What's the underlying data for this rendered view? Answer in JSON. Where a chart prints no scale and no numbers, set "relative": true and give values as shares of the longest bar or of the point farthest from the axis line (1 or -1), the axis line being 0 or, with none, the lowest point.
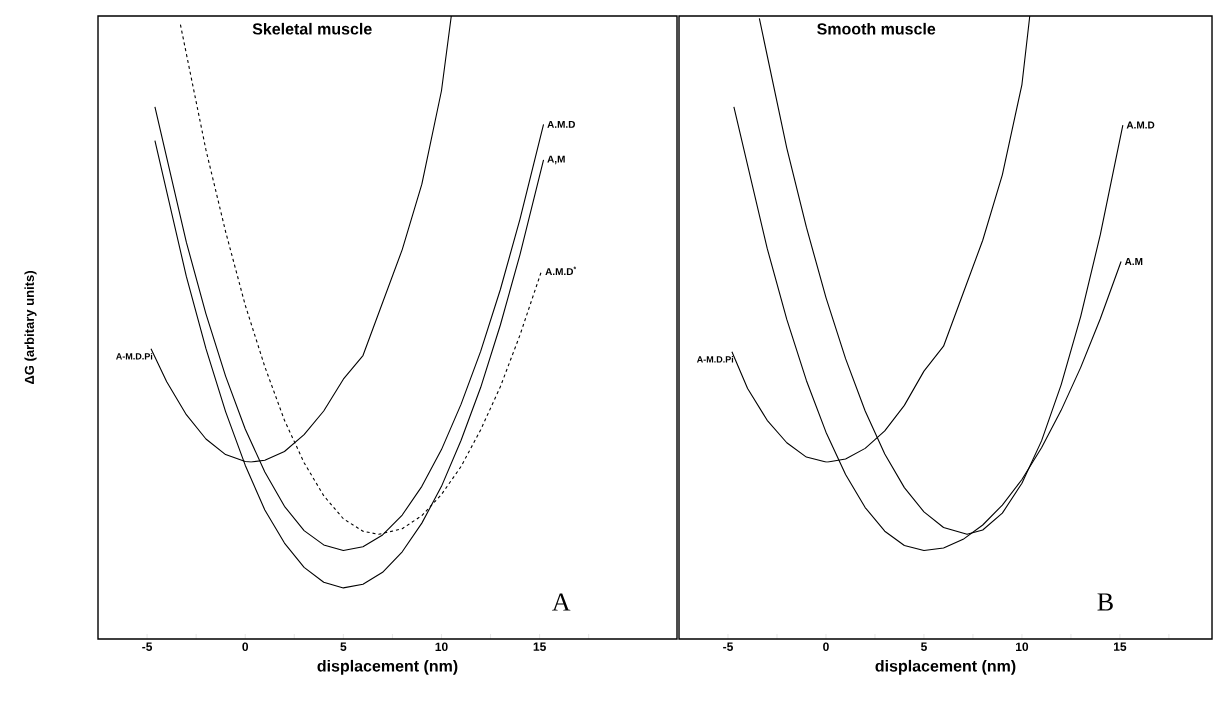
{
  "chart_data": [
    {
      "type": "line",
      "title": "Skeletal muscle",
      "xlabel": "displacement (nm)",
      "ylabel": "ΔG (arbitary units)",
      "relative": true,
      "xlim": [
        -7.5,
        22
      ],
      "xticks": [
        -5,
        {
          "value": -2.5,
          "label": null
        },
        0,
        {
          "value": 2.5,
          "label": null
        },
        5,
        {
          "value": 7.5,
          "label": null
        },
        10,
        {
          "value": 12.5,
          "label": null
        },
        15,
        {
          "value": 17.5,
          "label": null
        }
      ],
      "annotations": [
        "A"
      ],
      "series": [
        {
          "name": "A-M.D.Pi",
          "color": "#000000",
          "x": [
            -4.8,
            -4,
            -3,
            -2,
            -1,
            0,
            0.3,
            1,
            2,
            3,
            4,
            5,
            6,
            7,
            8,
            9,
            10,
            10.5
          ],
          "values": [
            0.466,
            0.413,
            0.36,
            0.321,
            0.296,
            0.285,
            0.284,
            0.287,
            0.301,
            0.328,
            0.366,
            0.417,
            0.455,
            0.54,
            0.625,
            0.73,
            0.88,
            1.0
          ]
        },
        {
          "name": "A.M.D",
          "color": "#000000",
          "x": [
            -4.6,
            -3,
            -2,
            -1,
            0,
            1,
            2,
            3,
            4,
            5,
            6,
            7,
            8,
            9,
            10,
            11,
            12,
            13,
            14,
            15.2
          ],
          "values": [
            0.854,
            0.637,
            0.522,
            0.422,
            0.337,
            0.268,
            0.213,
            0.174,
            0.151,
            0.142,
            0.148,
            0.167,
            0.199,
            0.245,
            0.304,
            0.377,
            0.462,
            0.561,
            0.674,
            0.826
          ]
        },
        {
          "name": "A,M",
          "color": "#000000",
          "x": [
            -4.6,
            -3,
            -2,
            -1,
            0,
            1,
            2,
            3,
            4,
            5,
            6,
            7,
            8,
            9,
            10,
            11,
            12,
            13,
            14,
            15.2
          ],
          "values": [
            0.8,
            0.582,
            0.466,
            0.365,
            0.279,
            0.207,
            0.154,
            0.115,
            0.091,
            0.082,
            0.088,
            0.107,
            0.14,
            0.186,
            0.245,
            0.319,
            0.404,
            0.504,
            0.617,
            0.769
          ]
        },
        {
          "name": "A.M.D$^{*}$",
          "color": "#000000",
          "line_style": "dashed",
          "x": [
            -3.3,
            -2,
            -1,
            0,
            1,
            2,
            3,
            4,
            5,
            6,
            6.8,
            8,
            9,
            10,
            11,
            12,
            13,
            14,
            15.1
          ],
          "values": [
            0.986,
            0.785,
            0.654,
            0.536,
            0.437,
            0.351,
            0.283,
            0.23,
            0.193,
            0.173,
            0.168,
            0.177,
            0.198,
            0.232,
            0.277,
            0.336,
            0.405,
            0.488,
            0.591
          ]
        }
      ]
    },
    {
      "type": "line",
      "title": "Smooth muscle",
      "xlabel": "displacement  (nm)",
      "relative": true,
      "xlim": [
        -7.5,
        19.7
      ],
      "xticks": [
        -5,
        {
          "value": -2.5,
          "label": null
        },
        0,
        {
          "value": 2.5,
          "label": null
        },
        5,
        {
          "value": 7.5,
          "label": null
        },
        10,
        {
          "value": 12.5,
          "label": null
        },
        15,
        {
          "value": 17.5,
          "label": null
        }
      ],
      "annotations": [
        "B"
      ],
      "series": [
        {
          "name": "A-M.D.Pi",
          "color": "#000000",
          "x": [
            -4.8,
            -4,
            -3,
            -2,
            -1,
            0,
            0.1,
            1,
            2,
            3,
            4,
            5,
            6,
            7,
            8,
            9,
            10,
            10.4
          ],
          "values": [
            0.461,
            0.402,
            0.351,
            0.315,
            0.292,
            0.284,
            0.284,
            0.289,
            0.306,
            0.334,
            0.375,
            0.43,
            0.47,
            0.555,
            0.64,
            0.745,
            0.89,
            1.0
          ]
        },
        {
          "name": "A.M.D",
          "color": "#000000",
          "x": [
            -3.4,
            -2,
            -1,
            0,
            1,
            2,
            3,
            4,
            5,
            6,
            7.2,
            8,
            9,
            10,
            11,
            12,
            13,
            14,
            15.15
          ],
          "values": [
            0.996,
            0.788,
            0.661,
            0.548,
            0.45,
            0.366,
            0.297,
            0.243,
            0.204,
            0.179,
            0.168,
            0.175,
            0.202,
            0.25,
            0.318,
            0.408,
            0.518,
            0.649,
            0.825
          ]
        },
        {
          "name": "A.M",
          "color": "#000000",
          "x": [
            -4.7,
            -3,
            -2,
            -1,
            0,
            1,
            2,
            3,
            4,
            5,
            6,
            7,
            8,
            9,
            10,
            11,
            12,
            13,
            14,
            15.06
          ],
          "values": [
            0.854,
            0.627,
            0.513,
            0.415,
            0.332,
            0.264,
            0.211,
            0.173,
            0.15,
            0.142,
            0.146,
            0.16,
            0.183,
            0.215,
            0.256,
            0.307,
            0.367,
            0.436,
            0.514,
            0.606
          ]
        }
      ]
    }
  ]
}
